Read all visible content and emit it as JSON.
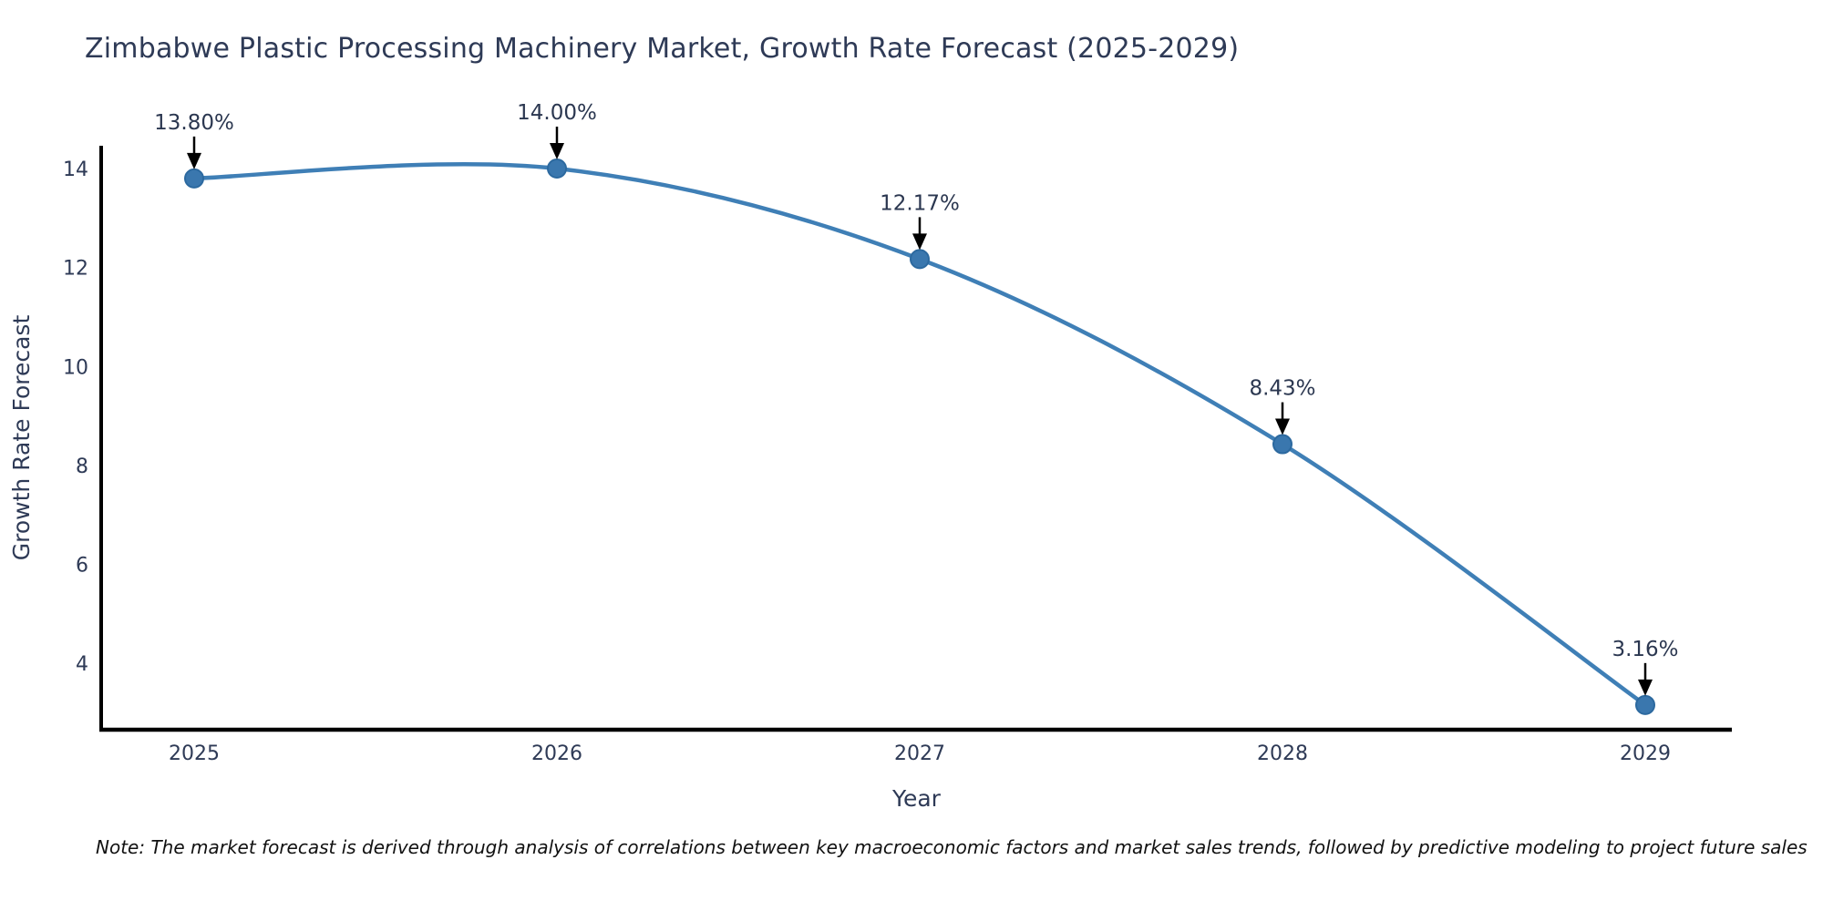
{
  "title": {
    "text": "Zimbabwe Plastic Processing Machinery Market, Growth Rate Forecast (2025-2029)"
  },
  "note": {
    "text": "Note: The market forecast is derived through analysis of correlations between key macroeconomic factors and market sales trends, followed by predictive modeling to project future sales"
  },
  "chart_data": {
    "type": "line",
    "title": "Zimbabwe Plastic Processing Machinery Market, Growth Rate Forecast (2025-2029)",
    "x": [
      2025,
      2026,
      2027,
      2028,
      2029
    ],
    "categories": [
      "2025",
      "2026",
      "2027",
      "2028",
      "2029"
    ],
    "values": [
      13.8,
      14.0,
      12.17,
      8.43,
      3.16
    ],
    "point_labels": [
      "13.80%",
      "14.00%",
      "12.17%",
      "8.43%",
      "3.16%"
    ],
    "xlabel": "Year",
    "ylabel": "Growth Rate Forecast",
    "yticks": [
      4,
      6,
      8,
      10,
      12,
      14
    ],
    "ylim": [
      2.66,
      14.46
    ],
    "grid": false,
    "legend_position": "none",
    "smooth": true,
    "colors": {
      "line": "#3f7fb6",
      "marker_fill": "#3a77ae",
      "marker_edge": "#2c699f",
      "axis": "#000000",
      "tick_text": "#2e3a56",
      "axis_title_text": "#2e3a56",
      "annotation_text": "#2b3750",
      "annotation_arrow": "#000000"
    }
  }
}
